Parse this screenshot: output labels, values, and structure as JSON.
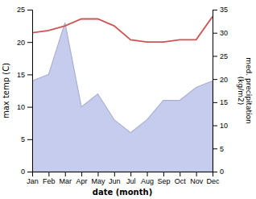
{
  "chart_data": {
    "type": "line",
    "categories": [
      "Jan",
      "Feb",
      "Mar",
      "Apr",
      "May",
      "Jun",
      "Jul",
      "Aug",
      "Sep",
      "Oct",
      "Nov",
      "Dec"
    ],
    "series": [
      {
        "type": "area",
        "color": "#c5ccee",
        "values": [
          14,
          15,
          23,
          10,
          12,
          8,
          6,
          8,
          11,
          11,
          13,
          14
        ]
      },
      {
        "type": "line",
        "color": "#cc5555",
        "axis": "y2",
        "values": [
          30,
          30.5,
          31.5,
          33,
          33,
          31.5,
          28.5,
          28,
          28,
          28.5,
          28.5,
          33.5
        ]
      }
    ],
    "xlabel": "date (month)",
    "ylabel": "max temp (C)",
    "y2label": "med. precipitation\n(kg/m2)",
    "ylim": [
      0,
      25
    ],
    "yticks": [
      0,
      5,
      10,
      15,
      20,
      25
    ],
    "y2lim": [
      0,
      35
    ],
    "y2ticks": [
      0,
      5,
      10,
      15,
      20,
      25,
      30,
      35
    ],
    "grid": false
  }
}
